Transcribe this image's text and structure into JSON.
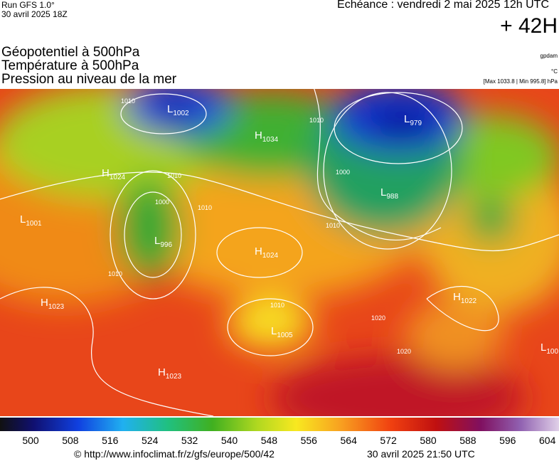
{
  "header": {
    "run": "Run GFS 1.0°",
    "run_date": "30 avril 2025 18Z",
    "echeance": "Echéance : vendredi 2 mai 2025 12h UTC",
    "lead": "+ 42H"
  },
  "layers": [
    "Géopotentiel à 500hPa",
    "Température à 500hPa",
    "Pression au niveau de la mer"
  ],
  "units": {
    "geopotential": "gpdam",
    "temperature": "°C",
    "pressure": "[Max 1033.8 | Min 995.8] hPa"
  },
  "pressure_centers": [
    {
      "kind": "L",
      "value": 1002
    },
    {
      "kind": "H",
      "value": 1034
    },
    {
      "kind": "L",
      "value": 979
    },
    {
      "kind": "H",
      "value": 1024
    },
    {
      "kind": "L",
      "value": 988
    },
    {
      "kind": "L",
      "value": 1001
    },
    {
      "kind": "L",
      "value": 996
    },
    {
      "kind": "H",
      "value": 1024
    },
    {
      "kind": "H",
      "value": 1023
    },
    {
      "kind": "H",
      "value": 1022
    },
    {
      "kind": "L",
      "value": 1005
    },
    {
      "kind": "L",
      "value": 100
    },
    {
      "kind": "H",
      "value": 1023
    }
  ],
  "isobar_labels": [
    1010,
    1010,
    1000,
    1010,
    1000,
    1010,
    1010,
    1020,
    1020,
    1010,
    1010
  ],
  "scale": [
    500,
    508,
    516,
    524,
    532,
    540,
    548,
    556,
    564,
    572,
    580,
    588,
    596,
    604
  ],
  "footer": {
    "source": "© http://www.infoclimat.fr/z/gfs/europe/500/42",
    "timestamp": "30 avril 2025 21:50 UTC"
  }
}
